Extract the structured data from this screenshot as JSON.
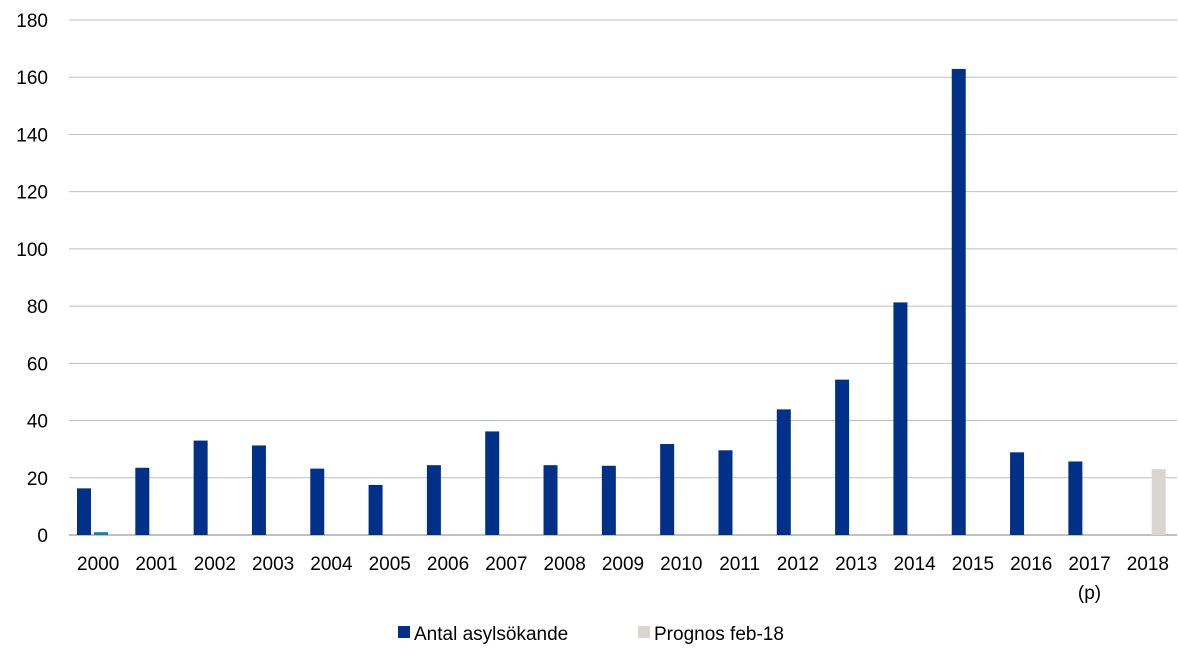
{
  "chart_data": {
    "type": "bar",
    "categories": [
      "2000",
      "2001",
      "2002",
      "2003",
      "2004",
      "2005",
      "2006",
      "2007",
      "2008",
      "2009",
      "2010",
      "2011",
      "2012",
      "2013",
      "2014",
      "2015",
      "2016",
      "2017",
      "2018"
    ],
    "category_sublabels": {
      "2017": "(p)"
    },
    "series": [
      {
        "name": "Antal asylsökande",
        "color": "#003087",
        "values": [
          16.3,
          23.5,
          33.0,
          31.3,
          23.2,
          17.5,
          24.4,
          36.2,
          24.4,
          24.2,
          31.8,
          29.6,
          43.9,
          54.3,
          81.3,
          162.9,
          28.9,
          25.7,
          null
        ]
      },
      {
        "name": "Prognos feb-18",
        "color": "#d9d5d1",
        "values": [
          1.0,
          null,
          null,
          null,
          null,
          null,
          null,
          null,
          null,
          null,
          null,
          null,
          null,
          null,
          null,
          null,
          null,
          null,
          23.0
        ]
      }
    ],
    "small_bar_2000_color": "#1a7fb8",
    "ylim": [
      0,
      180
    ],
    "yticks": [
      0,
      20,
      40,
      60,
      80,
      100,
      120,
      140,
      160,
      180
    ],
    "grid": true,
    "legend_position": "bottom",
    "title": "",
    "xlabel": "",
    "ylabel": ""
  }
}
